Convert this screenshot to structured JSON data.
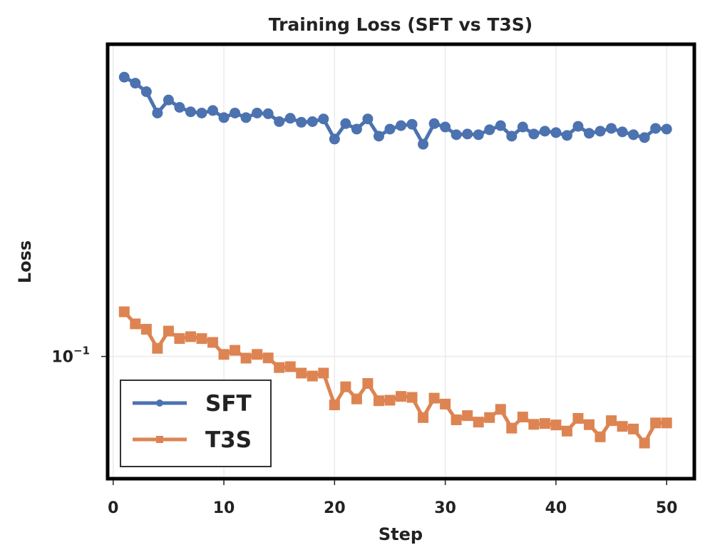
{
  "chart_data": {
    "type": "line",
    "title": "Training Loss (SFT vs T3S)",
    "xlabel": "Step",
    "ylabel": "Loss",
    "yscale": "log",
    "xlim": [
      -0.5,
      52.5
    ],
    "ylim": [
      0.0555,
      0.45
    ],
    "xticks": [
      0,
      10,
      20,
      30,
      40,
      50
    ],
    "xtick_labels": [
      "0",
      "10",
      "20",
      "30",
      "40",
      "50"
    ],
    "ytick_labels": [
      {
        "base": "10",
        "exp": "−1",
        "value": 0.1
      }
    ],
    "grid": true,
    "legend_position": "lower-left",
    "x": [
      1,
      2,
      3,
      4,
      5,
      6,
      7,
      8,
      9,
      10,
      11,
      12,
      13,
      14,
      15,
      16,
      17,
      18,
      19,
      20,
      21,
      22,
      23,
      24,
      25,
      26,
      27,
      28,
      29,
      30,
      31,
      32,
      33,
      34,
      35,
      36,
      37,
      38,
      39,
      40,
      41,
      42,
      43,
      44,
      45,
      46,
      47,
      48,
      49,
      50
    ],
    "series": [
      {
        "name": "SFT",
        "color": "#4c72b0",
        "marker": "circle",
        "values": [
          0.384,
          0.373,
          0.358,
          0.323,
          0.344,
          0.332,
          0.325,
          0.323,
          0.327,
          0.316,
          0.323,
          0.316,
          0.323,
          0.322,
          0.31,
          0.315,
          0.309,
          0.31,
          0.314,
          0.285,
          0.307,
          0.299,
          0.314,
          0.289,
          0.299,
          0.304,
          0.306,
          0.278,
          0.307,
          0.302,
          0.291,
          0.292,
          0.291,
          0.298,
          0.304,
          0.289,
          0.302,
          0.292,
          0.296,
          0.294,
          0.29,
          0.303,
          0.293,
          0.296,
          0.3,
          0.295,
          0.291,
          0.287,
          0.3,
          0.299
        ]
      },
      {
        "name": "T3S",
        "color": "#dd8452",
        "marker": "square",
        "values": [
          0.124,
          0.117,
          0.114,
          0.104,
          0.113,
          0.109,
          0.11,
          0.109,
          0.107,
          0.101,
          0.103,
          0.0992,
          0.101,
          0.0993,
          0.0948,
          0.0952,
          0.0923,
          0.091,
          0.0923,
          0.0792,
          0.0864,
          0.0815,
          0.0878,
          0.0808,
          0.081,
          0.0825,
          0.0821,
          0.0745,
          0.0818,
          0.0795,
          0.0737,
          0.0752,
          0.0729,
          0.0745,
          0.0775,
          0.0708,
          0.0747,
          0.0721,
          0.0724,
          0.0719,
          0.0698,
          0.0742,
          0.072,
          0.0679,
          0.0734,
          0.0714,
          0.0705,
          0.0659,
          0.0726,
          0.0726
        ]
      }
    ]
  }
}
